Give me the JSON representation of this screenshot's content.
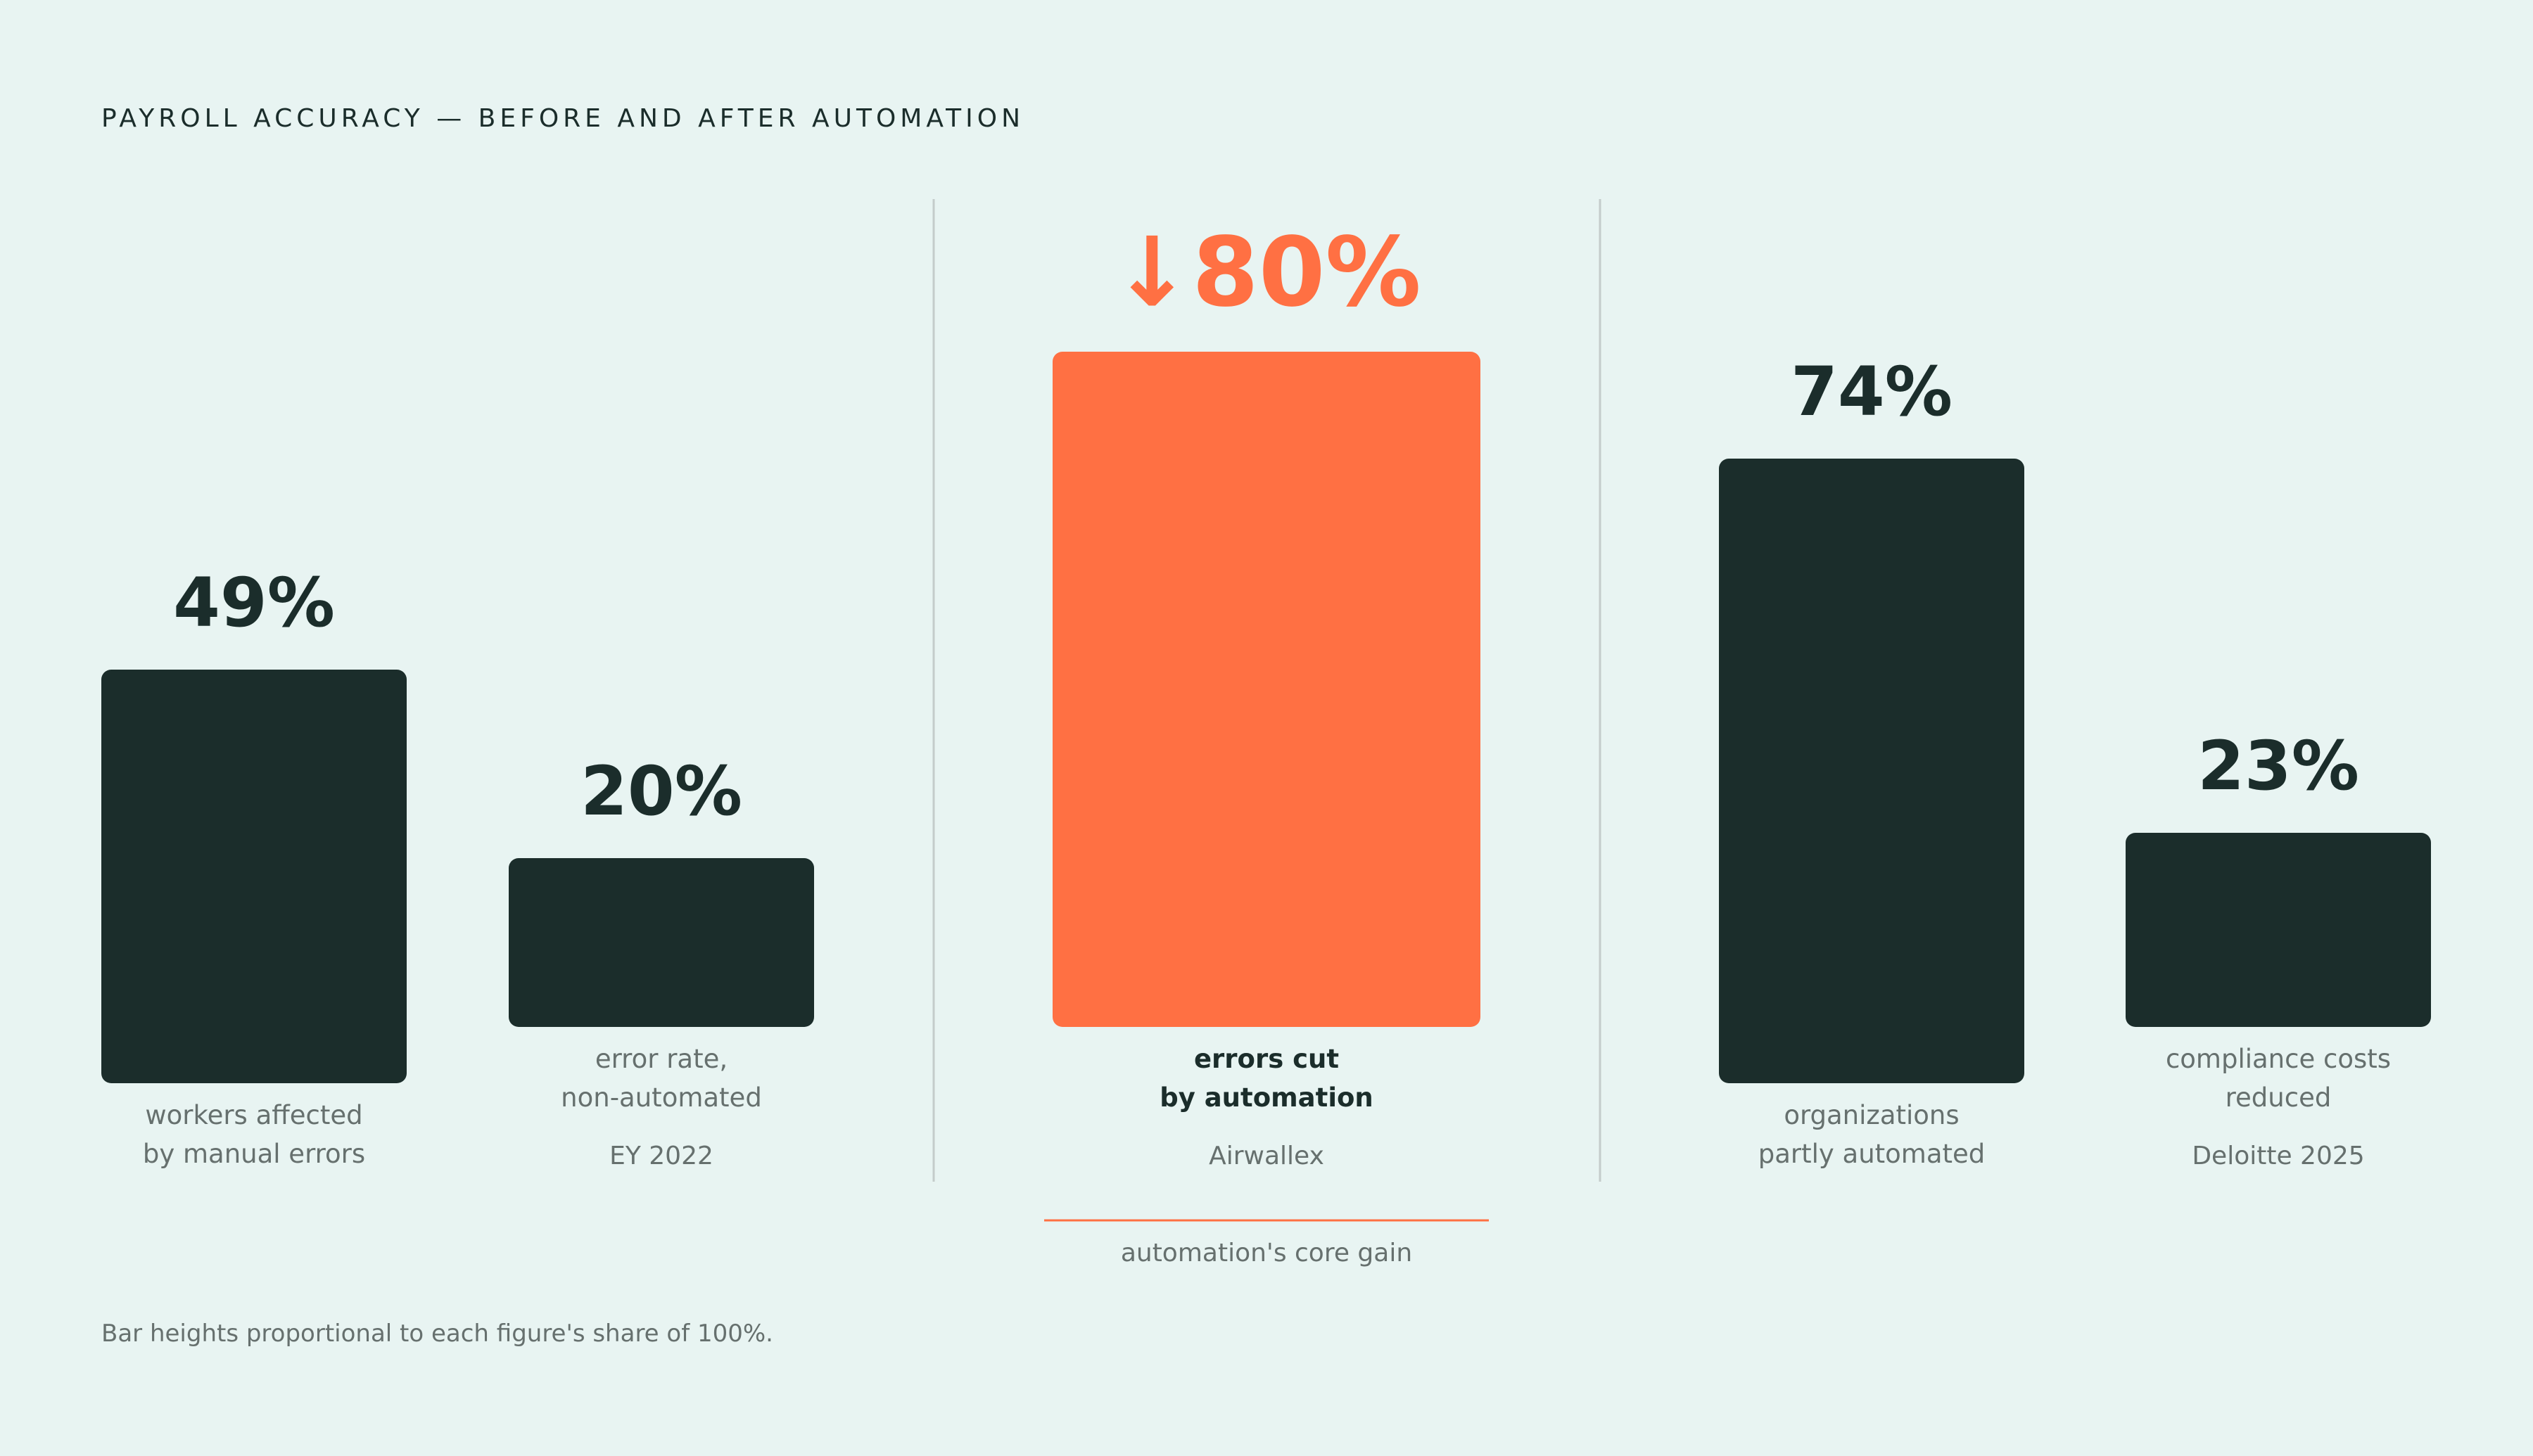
{
  "title": "PAYROLL ACCURACY — BEFORE AND AFTER AUTOMATION",
  "footnote": "Bar heights proportional to each figure's share of 100%.",
  "colors": {
    "background": "#e8f4f2",
    "bar": "#1b2d2b",
    "highlight": "#ff7043",
    "muted_text": "#66706e",
    "divider": "#c4cccb"
  },
  "chart_data": {
    "type": "bar",
    "title": "PAYROLL ACCURACY — BEFORE AND AFTER AUTOMATION",
    "ylim": [
      0,
      100
    ],
    "grid": false,
    "groups": [
      {
        "source": "EY 2022",
        "bars": [
          {
            "value": 49,
            "value_label": "49%",
            "label": [
              "workers affected",
              "by manual errors"
            ]
          },
          {
            "value": 20,
            "value_label": "20%",
            "label": [
              "error rate,",
              "non-automated"
            ]
          }
        ]
      },
      {
        "source": "Airwallex",
        "bars": [
          {
            "value": 80,
            "value_label": "↓80%",
            "label": [
              "errors cut",
              "by automation"
            ],
            "highlight": true
          }
        ],
        "annotation": "automation's core gain"
      },
      {
        "source": "Deloitte 2025",
        "bars": [
          {
            "value": 74,
            "value_label": "74%",
            "label": [
              "organizations",
              "partly automated"
            ]
          },
          {
            "value": 23,
            "value_label": "23%",
            "label": [
              "compliance costs",
              "reduced"
            ]
          }
        ]
      }
    ]
  }
}
